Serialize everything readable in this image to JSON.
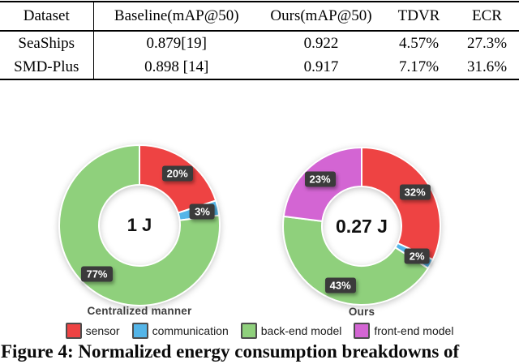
{
  "table": {
    "columns": [
      "Dataset",
      "Baseline(mAP@50)",
      "Ours(mAP@50)",
      "TDVR",
      "ECR"
    ],
    "rows": [
      [
        "SeaShips",
        "0.879[19]",
        "0.922",
        "4.57%",
        "27.3%"
      ],
      [
        "SMD-Plus",
        "0.898 [14]",
        "0.917",
        "7.17%",
        "31.6%"
      ]
    ]
  },
  "chart_data": [
    {
      "type": "pie",
      "subtype": "donut",
      "title": "Centralized manner",
      "center_label": "1 J",
      "start_angle_deg": 0,
      "direction": "clockwise",
      "segments": [
        {
          "name": "sensor",
          "value": 20,
          "label": "20%",
          "color": "#ee4343"
        },
        {
          "name": "communication",
          "value": 3,
          "label": "3%",
          "color": "#54b5e8"
        },
        {
          "name": "back-end model",
          "value": 77,
          "label": "77%",
          "color": "#8fd07c"
        }
      ]
    },
    {
      "type": "pie",
      "subtype": "donut",
      "title": "Ours",
      "center_label": "0.27 J",
      "start_angle_deg": 0,
      "direction": "clockwise",
      "segments": [
        {
          "name": "sensor",
          "value": 32,
          "label": "32%",
          "color": "#ee4343"
        },
        {
          "name": "communication",
          "value": 2,
          "label": "2%",
          "color": "#54b5e8"
        },
        {
          "name": "back-end model",
          "value": 43,
          "label": "43%",
          "color": "#8fd07c"
        },
        {
          "name": "front-end model",
          "value": 23,
          "label": "23%",
          "color": "#d365d3"
        }
      ]
    }
  ],
  "legend": [
    {
      "label": "sensor",
      "color": "#ee4343"
    },
    {
      "label": "communication",
      "color": "#54b5e8"
    },
    {
      "label": "back-end model",
      "color": "#8fd07c"
    },
    {
      "label": "front-end model",
      "color": "#d365d3"
    }
  ],
  "caption": "Figure 4: Normalized energy consumption breakdowns of"
}
